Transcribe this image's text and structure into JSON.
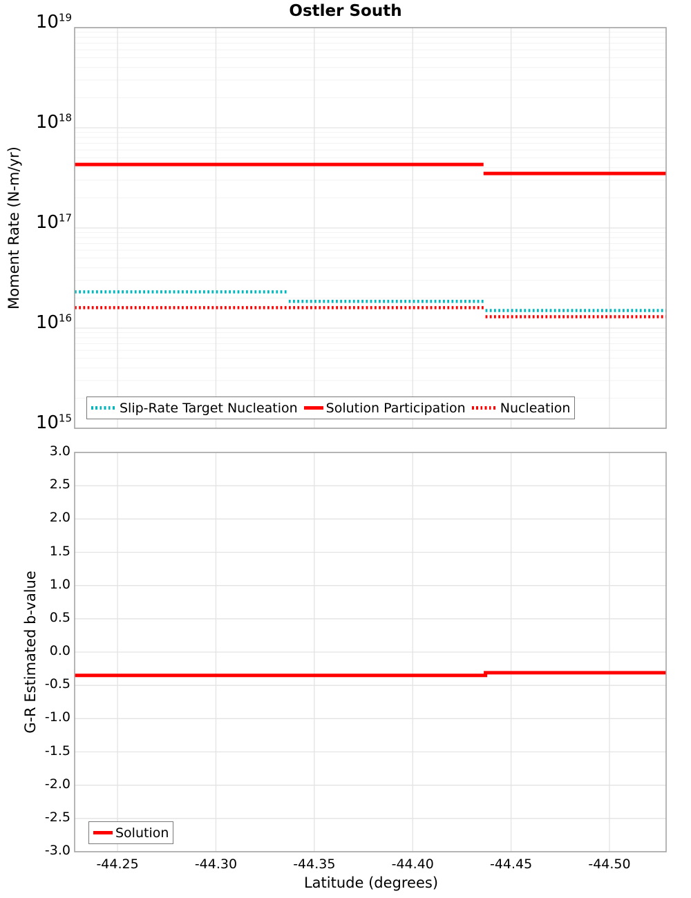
{
  "colors": {
    "red": "#FF0000",
    "teal": "#00B9BF",
    "grid_major": "#E3E3E3",
    "grid_minor": "#F2F2F2",
    "spine": "#A3A3A3",
    "legend_border": "#787878",
    "text": "#000000",
    "background": "#FFFFFF"
  },
  "chart_data": [
    {
      "id": "moment-rate-panel",
      "type": "line",
      "title": "Ostler South",
      "ylabel": "Moment Rate (N-m/yr)",
      "y_axis": {
        "scale": "log",
        "range": [
          1000000000000000.0,
          1e+19
        ],
        "tick_base": "10",
        "tick_exponents": [
          19,
          18,
          17,
          16,
          15
        ]
      },
      "x_axis": {
        "label": "",
        "range": [
          -44.2282,
          -44.5288
        ],
        "reversed": true,
        "tick_labels": [
          "-44.25",
          "-44.30",
          "-44.35",
          "-44.40",
          "-44.45",
          "-44.50"
        ],
        "tick_labels_visible": false
      },
      "grid": {
        "major": true,
        "minor_log": true
      },
      "legend": {
        "position": "bottom-left",
        "entries": [
          {
            "label": "Slip-Rate Target Nucleation",
            "color_key": "teal",
            "line_style": "dotted"
          },
          {
            "label": "Solution Participation",
            "color_key": "red",
            "line_style": "solid"
          },
          {
            "label": "Nucleation",
            "color_key": "red",
            "line_style": "dotted"
          }
        ]
      },
      "series": [
        {
          "name": "Slip-Rate Target Nucleation",
          "color_key": "teal",
          "line_style": "dotted",
          "step_connected": false,
          "segments": [
            {
              "x": [
                -44.2282,
                -44.337
              ],
              "y": 2.3e+16
            },
            {
              "x": [
                -44.337,
                -44.437
              ],
              "y": 1.85e+16
            },
            {
              "x": [
                -44.437,
                -44.5288
              ],
              "y": 1.5e+16
            }
          ]
        },
        {
          "name": "Solution Participation",
          "color_key": "red",
          "line_style": "solid",
          "step_connected": false,
          "segments": [
            {
              "x": [
                -44.2282,
                -44.436
              ],
              "y": 4.3e+17
            },
            {
              "x": [
                -44.436,
                -44.5288
              ],
              "y": 3.5e+17
            }
          ]
        },
        {
          "name": "Nucleation",
          "color_key": "red",
          "line_style": "dotted",
          "step_connected": false,
          "segments": [
            {
              "x": [
                -44.2282,
                -44.437
              ],
              "y": 1.6e+16
            },
            {
              "x": [
                -44.437,
                -44.5288
              ],
              "y": 1.3e+16
            }
          ]
        }
      ]
    },
    {
      "id": "b-value-panel",
      "type": "line",
      "title": "",
      "ylabel": "G-R Estimated b-value",
      "y_axis": {
        "scale": "linear",
        "range": [
          -3.0,
          3.0
        ],
        "tick_labels": [
          "3.0",
          "2.5",
          "2.0",
          "1.5",
          "1.0",
          "0.5",
          "0.0",
          "-0.5",
          "-1.0",
          "-1.5",
          "-2.0",
          "-2.5",
          "-3.0"
        ]
      },
      "x_axis": {
        "label": "Latitude (degrees)",
        "range": [
          -44.2282,
          -44.5288
        ],
        "reversed": true,
        "tick_labels": [
          "-44.25",
          "-44.30",
          "-44.35",
          "-44.40",
          "-44.45",
          "-44.50"
        ],
        "tick_labels_visible": true
      },
      "grid": {
        "major": true,
        "minor_log": false
      },
      "legend": {
        "position": "bottom-left",
        "entries": [
          {
            "label": "Solution",
            "color_key": "red",
            "line_style": "solid"
          }
        ]
      },
      "series": [
        {
          "name": "Solution",
          "color_key": "red",
          "line_style": "solid",
          "step_connected": true,
          "segments": [
            {
              "x": [
                -44.2282,
                -44.437
              ],
              "y": -0.35
            },
            {
              "x": [
                -44.437,
                -44.5288
              ],
              "y": -0.31
            }
          ]
        }
      ]
    }
  ]
}
